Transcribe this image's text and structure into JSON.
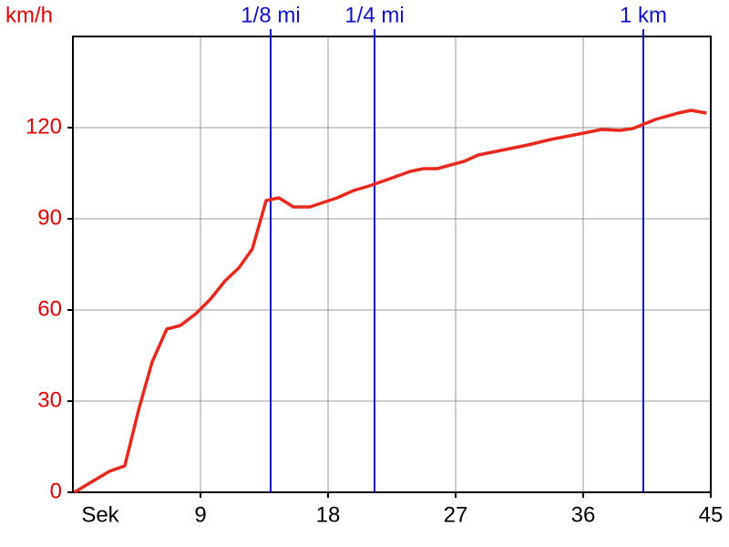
{
  "chart_data": {
    "type": "line",
    "y_label": "km/h",
    "x_label": "Sek",
    "x": [
      0.1,
      2.57,
      3.66,
      4.63,
      5.59,
      6.62,
      7.59,
      8.68,
      9.71,
      10.74,
      11.7,
      12.66,
      13.63,
      14.53,
      15.56,
      16.71,
      18.64,
      19.8,
      20.89,
      22.37,
      23.79,
      24.75,
      25.7,
      27.6,
      28.6,
      30.2,
      32.1,
      33.7,
      35.7,
      37.3,
      38.6,
      39.5,
      41.1,
      42.7,
      43.6,
      44.7
    ],
    "values": [
      0,
      6.9,
      8.7,
      27,
      42.9,
      53.7,
      54.9,
      58.8,
      63.6,
      69.6,
      73.8,
      80.1,
      96,
      96.9,
      93.9,
      93.9,
      96.9,
      99.3,
      100.8,
      103.2,
      105.6,
      106.5,
      106.5,
      108.9,
      111,
      112.5,
      114.3,
      116.1,
      117.9,
      119.4,
      119.1,
      119.7,
      122.7,
      124.8,
      125.7,
      124.8
    ],
    "color": "#e8281c",
    "xlim": [
      0,
      45
    ],
    "xticks": [
      9,
      18,
      27,
      36,
      45
    ],
    "ylim": [
      0,
      150
    ],
    "yticks": [
      0,
      30,
      60,
      90,
      120
    ],
    "grid": true,
    "grid_color": "#999999",
    "y_color": "#e00000",
    "markers": [
      {
        "label": "1/8 mi",
        "x": 13.95
      },
      {
        "label": "1/4 mi",
        "x": 21.28
      },
      {
        "label": "1 km",
        "x": 40.24
      }
    ],
    "marker_color": "#1010c8"
  }
}
